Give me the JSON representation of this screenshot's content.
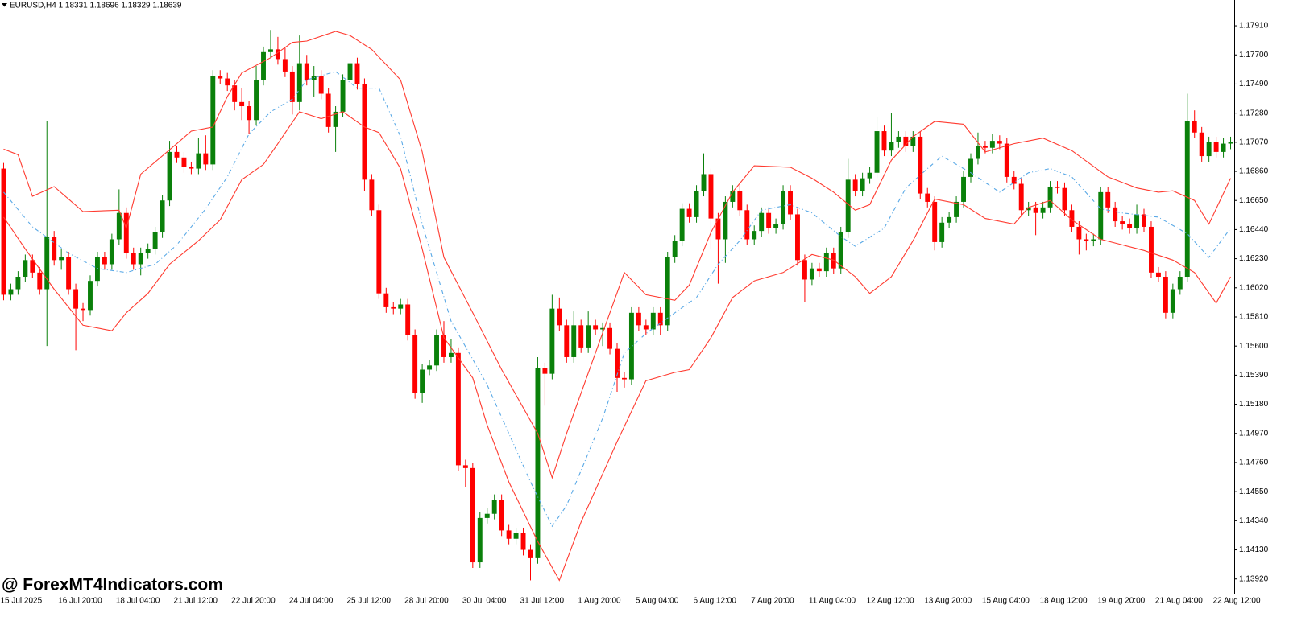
{
  "header": "EURUSD,H4  1.18331 1.18696 1.18329 1.18639",
  "watermark": "@ ForexMT4Indicators.com",
  "chart_data": {
    "type": "candlestick",
    "up_color": "#0a800a",
    "down_color": "#ff0000",
    "ylim": [
      1.13814,
      1.18096
    ],
    "yticks": [
      {
        "value": 1.1791,
        "label": "1.17910"
      },
      {
        "value": 1.177,
        "label": "1.17700"
      },
      {
        "value": 1.1749,
        "label": "1.17490"
      },
      {
        "value": 1.1728,
        "label": "1.17280"
      },
      {
        "value": 1.1707,
        "label": "1.17070"
      },
      {
        "value": 1.1686,
        "label": "1.16860"
      },
      {
        "value": 1.1665,
        "label": "1.16650"
      },
      {
        "value": 1.1644,
        "label": "1.16440"
      },
      {
        "value": 1.1623,
        "label": "1.16230"
      },
      {
        "value": 1.1602,
        "label": "1.16020"
      },
      {
        "value": 1.1581,
        "label": "1.15810"
      },
      {
        "value": 1.156,
        "label": "1.15600"
      },
      {
        "value": 1.1539,
        "label": "1.15390"
      },
      {
        "value": 1.1518,
        "label": "1.15180"
      },
      {
        "value": 1.1497,
        "label": "1.14970"
      },
      {
        "value": 1.1476,
        "label": "1.14760"
      },
      {
        "value": 1.1455,
        "label": "1.14550"
      },
      {
        "value": 1.1434,
        "label": "1.14340"
      },
      {
        "value": 1.1413,
        "label": "1.14130"
      },
      {
        "value": 1.1392,
        "label": "1.13920"
      }
    ],
    "categories": [
      "15 Jul 2025",
      null,
      null,
      null,
      null,
      null,
      null,
      null,
      "16 Jul 20:00",
      null,
      null,
      null,
      null,
      null,
      null,
      null,
      "18 Jul 04:00",
      null,
      null,
      null,
      null,
      null,
      null,
      null,
      "21 Jul 12:00",
      null,
      null,
      null,
      null,
      null,
      null,
      null,
      "22 Jul 20:00",
      null,
      null,
      null,
      null,
      null,
      null,
      null,
      "24 Jul 04:00",
      null,
      null,
      null,
      null,
      null,
      null,
      null,
      "25 Jul 12:00",
      null,
      null,
      null,
      null,
      null,
      null,
      null,
      "28 Jul 20:00",
      null,
      null,
      null,
      null,
      null,
      null,
      null,
      "30 Jul 04:00",
      null,
      null,
      null,
      null,
      null,
      null,
      null,
      "31 Jul 12:00",
      null,
      null,
      null,
      null,
      null,
      null,
      null,
      "1 Aug 20:00",
      null,
      null,
      null,
      null,
      null,
      null,
      null,
      "5 Aug 04:00",
      null,
      null,
      null,
      null,
      null,
      null,
      null,
      "6 Aug 12:00",
      null,
      null,
      null,
      null,
      null,
      null,
      null,
      "7 Aug 20:00",
      null,
      null,
      null,
      null,
      null,
      null,
      null,
      "11 Aug 04:00",
      null,
      null,
      null,
      null,
      null,
      null,
      null,
      "12 Aug 12:00",
      null,
      null,
      null,
      null,
      null,
      null,
      null,
      "13 Aug 20:00",
      null,
      null,
      null,
      null,
      null,
      null,
      null,
      "15 Aug 04:00",
      null,
      null,
      null,
      null,
      null,
      null,
      null,
      "18 Aug 12:00",
      null,
      null,
      null,
      null,
      null,
      null,
      null,
      "19 Aug 20:00",
      null,
      null,
      null,
      null,
      null,
      null,
      null,
      "21 Aug 04:00",
      null,
      null,
      null,
      null,
      null,
      null,
      null,
      "22 Aug 12:00",
      null,
      null
    ],
    "open": [
      1.1688,
      1.1597,
      1.1601,
      1.161,
      1.1622,
      1.1613,
      1.1601,
      1.1639,
      1.1622,
      1.1624,
      1.1601,
      1.1587,
      1.1586,
      1.1607,
      1.1624,
      1.1619,
      1.1637,
      1.1656,
      1.1627,
      1.1619,
      1.1627,
      1.163,
      1.1642,
      1.1665,
      1.17,
      1.1696,
      1.1689,
      1.1688,
      1.1699,
      1.1691,
      1.1755,
      1.1753,
      1.1748,
      1.1736,
      1.1733,
      1.1723,
      1.1752,
      1.1772,
      1.1774,
      1.1767,
      1.1758,
      1.1736,
      1.1764,
      1.1752,
      1.1755,
      1.1742,
      1.1718,
      1.1729,
      1.1752,
      1.1764,
      1.1749,
      1.168,
      1.1658,
      1.1598,
      1.1588,
      1.1587,
      1.159,
      1.1568,
      1.1526,
      1.1543,
      1.1546,
      1.1568,
      1.1552,
      1.1555,
      1.1474,
      1.1472,
      1.1404,
      1.1436,
      1.1439,
      1.1449,
      1.1427,
      1.1421,
      1.1425,
      1.1413,
      1.1407,
      1.1544,
      1.154,
      1.1587,
      1.1575,
      1.1552,
      1.1575,
      1.1559,
      1.1575,
      1.1572,
      1.1573,
      1.1558,
      1.1537,
      1.1536,
      1.1584,
      1.1575,
      1.1572,
      1.1584,
      1.1575,
      1.1624,
      1.1636,
      1.1659,
      1.1653,
      1.1672,
      1.1684,
      1.1652,
      1.1637,
      1.1664,
      1.1672,
      1.1658,
      1.1637,
      1.1643,
      1.1656,
      1.1645,
      1.1648,
      1.1672,
      1.1655,
      1.1622,
      1.1608,
      1.1616,
      1.1614,
      1.1627,
      1.1616,
      1.1642,
      1.168,
      1.1672,
      1.1681,
      1.1685,
      1.1715,
      1.1701,
      1.1707,
      1.1711,
      1.1704,
      1.1711,
      1.167,
      1.1664,
      1.1635,
      1.1649,
      1.1653,
      1.1664,
      1.1682,
      1.1695,
      1.1704,
      1.1703,
      1.1708,
      1.1706,
      1.1682,
      1.1677,
      1.1658,
      1.166,
      1.1656,
      1.166,
      1.1675,
      1.1674,
      1.1658,
      1.1646,
      1.1637,
      1.1636,
      1.1637,
      1.1671,
      1.166,
      1.165,
      1.1648,
      1.1645,
      1.1655,
      1.1646,
      1.1613,
      1.161,
      1.1584,
      1.1601,
      1.161,
      1.1722,
      1.1714,
      1.1697,
      1.1707,
      1.17,
      1.1706
    ],
    "high": [
      1.1692,
      1.1605,
      1.1614,
      1.1626,
      1.1626,
      1.1617,
      1.1722,
      1.1643,
      1.163,
      1.1628,
      1.1605,
      1.1591,
      1.1611,
      1.1628,
      1.1628,
      1.1641,
      1.1673,
      1.166,
      1.1631,
      1.1631,
      1.1634,
      1.1646,
      1.1669,
      1.1708,
      1.1704,
      1.17,
      1.1693,
      1.171,
      1.1712,
      1.1759,
      1.1759,
      1.1757,
      1.1752,
      1.1746,
      1.1737,
      1.1762,
      1.1776,
      1.1788,
      1.1783,
      1.1775,
      1.1762,
      1.1784,
      1.177,
      1.1762,
      1.1759,
      1.1746,
      1.1733,
      1.1756,
      1.177,
      1.1768,
      1.1753,
      1.1684,
      1.1662,
      1.1602,
      1.1592,
      1.1594,
      1.1594,
      1.1572,
      1.1547,
      1.155,
      1.1572,
      1.1578,
      1.1565,
      1.1559,
      1.1478,
      1.1476,
      1.144,
      1.1443,
      1.1453,
      1.1453,
      1.1431,
      1.1429,
      1.1429,
      1.1417,
      1.1552,
      1.1548,
      1.1597,
      1.1595,
      1.1579,
      1.1585,
      1.1579,
      1.1585,
      1.1579,
      1.1577,
      1.1577,
      1.1562,
      1.1541,
      1.1588,
      1.1588,
      1.1579,
      1.1588,
      1.1588,
      1.1628,
      1.164,
      1.1663,
      1.1663,
      1.1676,
      1.1699,
      1.1688,
      1.1656,
      1.1668,
      1.1676,
      1.1676,
      1.1662,
      1.1647,
      1.166,
      1.166,
      1.1652,
      1.1676,
      1.1676,
      1.1659,
      1.1626,
      1.162,
      1.162,
      1.1631,
      1.1631,
      1.1646,
      1.1695,
      1.1684,
      1.1685,
      1.1689,
      1.1725,
      1.1719,
      1.1728,
      1.1715,
      1.1715,
      1.1715,
      1.1715,
      1.1674,
      1.1668,
      1.1653,
      1.1657,
      1.1668,
      1.1686,
      1.1699,
      1.1714,
      1.1708,
      1.1713,
      1.1712,
      1.171,
      1.1686,
      1.1681,
      1.1664,
      1.1664,
      1.1664,
      1.1679,
      1.1679,
      1.1678,
      1.1662,
      1.165,
      1.1641,
      1.1641,
      1.1675,
      1.1675,
      1.1664,
      1.1654,
      1.1652,
      1.1662,
      1.1659,
      1.165,
      1.1617,
      1.1614,
      1.1605,
      1.1614,
      1.1742,
      1.173,
      1.1718,
      1.1711,
      1.1711,
      1.171,
      1.1711
    ],
    "low": [
      1.1593,
      1.1593,
      1.1597,
      1.1606,
      1.1609,
      1.1597,
      1.156,
      1.1618,
      1.1615,
      1.1597,
      1.1557,
      1.1578,
      1.1582,
      1.1603,
      1.1615,
      1.1615,
      1.1633,
      1.1623,
      1.1615,
      1.1611,
      1.1623,
      1.1626,
      1.1638,
      1.1661,
      1.1692,
      1.1685,
      1.1684,
      1.1684,
      1.1687,
      1.1687,
      1.1749,
      1.1744,
      1.173,
      1.1723,
      1.1713,
      1.1719,
      1.1748,
      1.1768,
      1.1763,
      1.1754,
      1.1727,
      1.173,
      1.1748,
      1.174,
      1.1738,
      1.1714,
      1.17,
      1.1725,
      1.1748,
      1.1745,
      1.1672,
      1.1654,
      1.1594,
      1.1584,
      1.1583,
      1.1583,
      1.1564,
      1.1522,
      1.1519,
      1.1539,
      1.1542,
      1.1548,
      1.1548,
      1.147,
      1.1458,
      1.14,
      1.14,
      1.1432,
      1.1435,
      1.1423,
      1.1417,
      1.1417,
      1.1409,
      1.1391,
      1.1403,
      1.1517,
      1.1536,
      1.1571,
      1.1548,
      1.1548,
      1.1555,
      1.1555,
      1.1568,
      1.156,
      1.1554,
      1.1527,
      1.153,
      1.1532,
      1.1571,
      1.1568,
      1.1568,
      1.1568,
      1.1571,
      1.162,
      1.1632,
      1.1649,
      1.1649,
      1.1668,
      1.163,
      1.1605,
      1.162,
      1.166,
      1.1654,
      1.1633,
      1.1633,
      1.1639,
      1.1641,
      1.1641,
      1.1644,
      1.1651,
      1.1618,
      1.1592,
      1.1604,
      1.161,
      1.161,
      1.1612,
      1.1612,
      1.1638,
      1.1668,
      1.1668,
      1.1677,
      1.1681,
      1.1697,
      1.1697,
      1.1703,
      1.17,
      1.17,
      1.1666,
      1.166,
      1.1629,
      1.1631,
      1.1645,
      1.1649,
      1.166,
      1.1678,
      1.1691,
      1.1699,
      1.1699,
      1.1702,
      1.1678,
      1.1673,
      1.1654,
      1.1654,
      1.164,
      1.1652,
      1.1656,
      1.167,
      1.1654,
      1.1642,
      1.1626,
      1.1629,
      1.1632,
      1.1633,
      1.1656,
      1.1646,
      1.1644,
      1.1641,
      1.1641,
      1.1642,
      1.1609,
      1.1606,
      1.158,
      1.158,
      1.1597,
      1.1606,
      1.171,
      1.1693,
      1.1693,
      1.1696,
      1.1696,
      1.1702
    ],
    "close": [
      1.1597,
      1.1601,
      1.161,
      1.1622,
      1.1613,
      1.1601,
      1.1639,
      1.1622,
      1.1624,
      1.1601,
      1.1587,
      1.1586,
      1.1607,
      1.1624,
      1.1619,
      1.1637,
      1.1656,
      1.1627,
      1.1619,
      1.1627,
      1.163,
      1.1642,
      1.1665,
      1.17,
      1.1696,
      1.1689,
      1.1688,
      1.1699,
      1.1691,
      1.1755,
      1.1753,
      1.1748,
      1.1736,
      1.1733,
      1.1723,
      1.1752,
      1.1772,
      1.1774,
      1.1767,
      1.1758,
      1.1736,
      1.1764,
      1.1752,
      1.1755,
      1.1742,
      1.1718,
      1.1729,
      1.1752,
      1.1764,
      1.1749,
      1.168,
      1.1658,
      1.1598,
      1.1588,
      1.1587,
      1.159,
      1.1568,
      1.1526,
      1.1543,
      1.1546,
      1.1568,
      1.1552,
      1.1555,
      1.1474,
      1.1472,
      1.1404,
      1.1436,
      1.1439,
      1.1449,
      1.1427,
      1.1421,
      1.1425,
      1.1413,
      1.1407,
      1.1544,
      1.154,
      1.1587,
      1.1575,
      1.1552,
      1.1575,
      1.1559,
      1.1575,
      1.1572,
      1.1573,
      1.1558,
      1.1537,
      1.1536,
      1.1584,
      1.1575,
      1.1572,
      1.1584,
      1.1575,
      1.1624,
      1.1636,
      1.1659,
      1.1653,
      1.1672,
      1.1684,
      1.1652,
      1.1637,
      1.1664,
      1.1672,
      1.1658,
      1.1637,
      1.1643,
      1.1656,
      1.1645,
      1.1648,
      1.1672,
      1.1655,
      1.1622,
      1.1608,
      1.1616,
      1.1614,
      1.1627,
      1.1616,
      1.1642,
      1.168,
      1.1672,
      1.1681,
      1.1685,
      1.1715,
      1.1701,
      1.1707,
      1.1711,
      1.1704,
      1.1711,
      1.167,
      1.1664,
      1.1635,
      1.1649,
      1.1653,
      1.1664,
      1.1682,
      1.1695,
      1.1704,
      1.1703,
      1.1708,
      1.1706,
      1.1682,
      1.1677,
      1.1658,
      1.166,
      1.1656,
      1.166,
      1.1675,
      1.1674,
      1.1658,
      1.1646,
      1.1637,
      1.1636,
      1.1637,
      1.1671,
      1.166,
      1.165,
      1.1648,
      1.1645,
      1.1655,
      1.1646,
      1.1613,
      1.161,
      1.1584,
      1.1601,
      1.161,
      1.1722,
      1.1714,
      1.1697,
      1.1707,
      1.17,
      1.1706,
      1.1707
    ],
    "bands": [
      {
        "color": "#ff3b30",
        "dash": false,
        "x": [
          0,
          2,
          4,
          7,
          11,
          16,
          17,
          19,
          24,
          26,
          29,
          31,
          33,
          37,
          40,
          42,
          46,
          48,
          51,
          55,
          58,
          61,
          65,
          69,
          74,
          76,
          78,
          82,
          86,
          89,
          93,
          95,
          98,
          101,
          104,
          109,
          112,
          115,
          118,
          120,
          123,
          126,
          129,
          133,
          136,
          140,
          144,
          148,
          153,
          157,
          160,
          162,
          165,
          167,
          170
        ],
        "values": [
          1.1702,
          1.1698,
          1.1668,
          1.1675,
          1.1657,
          1.1658,
          1.1645,
          1.1684,
          1.1706,
          1.1715,
          1.1718,
          1.174,
          1.1757,
          1.1768,
          1.1779,
          1.178,
          1.1787,
          1.1784,
          1.1774,
          1.1752,
          1.17,
          1.1624,
          1.1584,
          1.1543,
          1.1497,
          1.1465,
          1.1497,
          1.1555,
          1.1613,
          1.1597,
          1.1593,
          1.1604,
          1.1642,
          1.1671,
          1.169,
          1.1689,
          1.1681,
          1.1671,
          1.1658,
          1.1662,
          1.1694,
          1.1711,
          1.1722,
          1.172,
          1.17,
          1.1706,
          1.171,
          1.1701,
          1.1682,
          1.1674,
          1.1671,
          1.1672,
          1.1665,
          1.1648,
          1.1681
        ]
      },
      {
        "color": "#5aa9e6",
        "dash": true,
        "x": [
          0,
          4,
          9,
          13,
          17,
          21,
          24,
          28,
          31,
          34,
          37,
          40,
          42,
          46,
          49,
          52,
          55,
          58,
          62,
          67,
          73,
          76,
          78,
          83,
          86,
          89,
          93,
          96,
          99,
          102,
          105,
          109,
          112,
          116,
          118,
          122,
          125,
          128,
          130,
          134,
          138,
          142,
          145,
          148,
          152,
          155,
          160,
          164,
          167,
          170
        ],
        "values": [
          1.1671,
          1.1646,
          1.1627,
          1.1616,
          1.1613,
          1.1619,
          1.1633,
          1.1659,
          1.1682,
          1.1713,
          1.1729,
          1.1738,
          1.1752,
          1.1758,
          1.1746,
          1.1746,
          1.1711,
          1.1648,
          1.1578,
          1.1532,
          1.1462,
          1.143,
          1.1445,
          1.1508,
          1.1555,
          1.1569,
          1.1584,
          1.1595,
          1.1619,
          1.1636,
          1.1658,
          1.1662,
          1.1656,
          1.1639,
          1.1632,
          1.1645,
          1.1674,
          1.1688,
          1.1697,
          1.1685,
          1.1671,
          1.1685,
          1.1688,
          1.1682,
          1.1659,
          1.1656,
          1.1653,
          1.1641,
          1.1624,
          1.1645
        ]
      },
      {
        "color": "#ff3b30",
        "dash": false,
        "x": [
          0,
          3,
          7,
          11,
          15,
          17,
          20,
          23,
          27,
          30,
          33,
          36,
          38,
          41,
          44,
          47,
          50,
          52,
          55,
          58,
          61,
          65,
          67,
          70,
          74,
          77,
          80,
          85,
          89,
          93,
          95,
          98,
          101,
          104,
          108,
          112,
          115,
          118,
          120,
          123,
          126,
          129,
          133,
          136,
          140,
          142,
          145,
          148,
          152,
          155,
          158,
          162,
          165,
          168,
          170
        ],
        "values": [
          1.1653,
          1.163,
          1.1601,
          1.1575,
          1.1571,
          1.1584,
          1.1598,
          1.1619,
          1.1636,
          1.1651,
          1.168,
          1.1691,
          1.1706,
          1.1729,
          1.1724,
          1.1729,
          1.1718,
          1.1714,
          1.1688,
          1.163,
          1.1566,
          1.1537,
          1.1503,
          1.1462,
          1.1419,
          1.1391,
          1.1433,
          1.1491,
          1.1535,
          1.1541,
          1.1543,
          1.1566,
          1.1595,
          1.1607,
          1.1613,
          1.1626,
          1.1622,
          1.161,
          1.1598,
          1.161,
          1.1636,
          1.1666,
          1.1662,
          1.1652,
          1.1648,
          1.166,
          1.1665,
          1.1651,
          1.1637,
          1.1633,
          1.1629,
          1.1622,
          1.1613,
          1.1591,
          1.161
        ]
      }
    ]
  }
}
